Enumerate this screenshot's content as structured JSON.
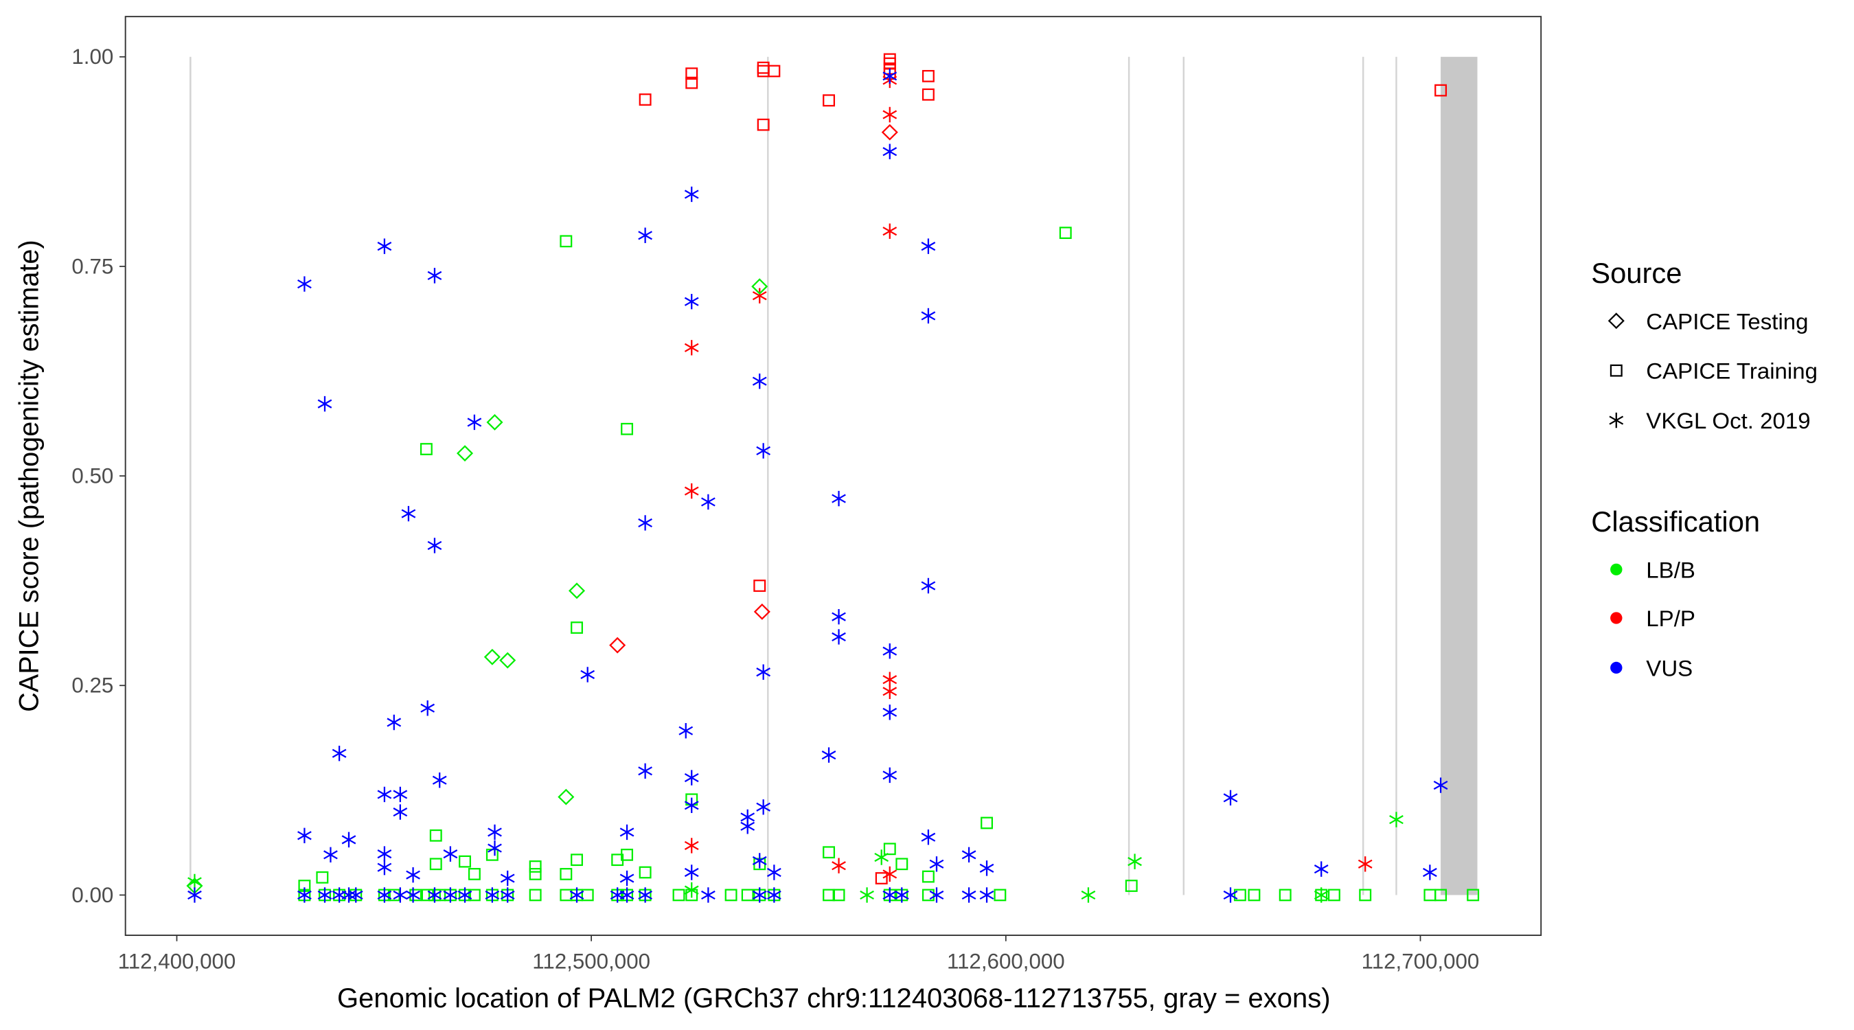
{
  "chart_data": {
    "type": "scatter",
    "xlabel": "Genomic location of PALM2 (GRCh37 chr9:112403068-112713755, gray = exons)",
    "ylabel": "CAPICE score (pathogenicity estimate)",
    "xlim": [
      112384000,
      112725000
    ],
    "ylim": [
      -0.047,
      1.047
    ],
    "x_ticks": [
      112400000,
      112500000,
      112600000,
      112700000
    ],
    "x_tick_labels": [
      "112,400,000",
      "112,500,000",
      "112,600,000",
      "112,700,000"
    ],
    "y_ticks": [
      0,
      0.25,
      0.5,
      0.75,
      1.0
    ],
    "y_tick_labels": [
      "0.00",
      "0.25",
      "0.50",
      "0.75",
      "1.00"
    ],
    "grid": false,
    "exons": [
      [
        112403068,
        112403500
      ],
      [
        112542400,
        112542800
      ],
      [
        112629500,
        112629900
      ],
      [
        112642700,
        112643100
      ],
      [
        112686000,
        112686400
      ],
      [
        112694000,
        112694400
      ],
      [
        112704900,
        112713755
      ]
    ],
    "legend": {
      "placement": "right",
      "source_title": "Source",
      "source_items": [
        {
          "code": "T",
          "label": "CAPICE Testing",
          "shape": "diamond"
        },
        {
          "code": "R",
          "label": "CAPICE Training",
          "shape": "square"
        },
        {
          "code": "V",
          "label": "VKGL Oct. 2019",
          "shape": "asterisk"
        }
      ],
      "class_title": "Classification",
      "class_items": [
        {
          "code": "B",
          "label": "LB/B",
          "color": "#00EE00"
        },
        {
          "code": "P",
          "label": "LP/P",
          "color": "#FF0000"
        },
        {
          "code": "U",
          "label": "VUS",
          "color": "#0000FF"
        }
      ]
    },
    "points": [
      [
        112513000,
        0.949,
        "R",
        "P"
      ],
      [
        112524200,
        0.98,
        "R",
        "P"
      ],
      [
        112524200,
        0.969,
        "R",
        "P"
      ],
      [
        112541500,
        0.987,
        "R",
        "P"
      ],
      [
        112541500,
        0.983,
        "R",
        "P"
      ],
      [
        112544100,
        0.983,
        "R",
        "P"
      ],
      [
        112541500,
        0.919,
        "R",
        "P"
      ],
      [
        112557300,
        0.948,
        "R",
        "P"
      ],
      [
        112572000,
        0.997,
        "R",
        "P"
      ],
      [
        112572000,
        0.992,
        "R",
        "P"
      ],
      [
        112572000,
        0.986,
        "R",
        "P"
      ],
      [
        112572000,
        0.98,
        "R",
        "P"
      ],
      [
        112581300,
        0.977,
        "R",
        "P"
      ],
      [
        112581300,
        0.955,
        "R",
        "P"
      ],
      [
        112704900,
        0.96,
        "R",
        "P"
      ],
      [
        112540600,
        0.369,
        "R",
        "P"
      ],
      [
        112570000,
        0.02,
        "R",
        "P"
      ],
      [
        112572000,
        0.972,
        "V",
        "P"
      ],
      [
        112572000,
        0.931,
        "V",
        "P"
      ],
      [
        112572000,
        0.792,
        "V",
        "P"
      ],
      [
        112540600,
        0.715,
        "V",
        "P"
      ],
      [
        112524200,
        0.653,
        "V",
        "P"
      ],
      [
        112524200,
        0.482,
        "V",
        "P"
      ],
      [
        112524200,
        0.059,
        "V",
        "P"
      ],
      [
        112559700,
        0.035,
        "V",
        "P"
      ],
      [
        112572000,
        0.257,
        "V",
        "P"
      ],
      [
        112572000,
        0.243,
        "V",
        "P"
      ],
      [
        112572000,
        0.025,
        "V",
        "P"
      ],
      [
        112686700,
        0.037,
        "V",
        "P"
      ],
      [
        112572000,
        0.91,
        "T",
        "P"
      ],
      [
        112541200,
        0.338,
        "T",
        "P"
      ],
      [
        112506300,
        0.298,
        "T",
        "P"
      ],
      [
        112540600,
        0.726,
        "T",
        "B"
      ],
      [
        112476700,
        0.564,
        "T",
        "B"
      ],
      [
        112469500,
        0.527,
        "T",
        "B"
      ],
      [
        112496500,
        0.363,
        "T",
        "B"
      ],
      [
        112476100,
        0.284,
        "T",
        "B"
      ],
      [
        112479800,
        0.28,
        "T",
        "B"
      ],
      [
        112493900,
        0.117,
        "T",
        "B"
      ],
      [
        112404300,
        0.011,
        "T",
        "B"
      ],
      [
        112493900,
        0.78,
        "R",
        "B"
      ],
      [
        112614400,
        0.79,
        "R",
        "B"
      ],
      [
        112508600,
        0.556,
        "R",
        "B"
      ],
      [
        112460200,
        0.532,
        "R",
        "B"
      ],
      [
        112496500,
        0.319,
        "R",
        "B"
      ],
      [
        112595400,
        0.086,
        "R",
        "B"
      ],
      [
        112462500,
        0.071,
        "R",
        "B"
      ],
      [
        112524200,
        0.114,
        "R",
        "B"
      ],
      [
        112557300,
        0.051,
        "R",
        "B"
      ],
      [
        112572000,
        0.055,
        "R",
        "B"
      ],
      [
        112630300,
        0.011,
        "R",
        "B"
      ],
      [
        112486500,
        0.034,
        "R",
        "B"
      ],
      [
        112486500,
        0.025,
        "R",
        "B"
      ],
      [
        112493900,
        0.025,
        "R",
        "B"
      ],
      [
        112496500,
        0.042,
        "R",
        "B"
      ],
      [
        112506300,
        0.042,
        "R",
        "B"
      ],
      [
        112508600,
        0.048,
        "R",
        "B"
      ],
      [
        112513000,
        0.027,
        "R",
        "B"
      ],
      [
        112462500,
        0.037,
        "R",
        "B"
      ],
      [
        112469500,
        0.04,
        "R",
        "B"
      ],
      [
        112471800,
        0.025,
        "R",
        "B"
      ],
      [
        112476100,
        0.048,
        "R",
        "B"
      ],
      [
        112435100,
        0.021,
        "R",
        "B"
      ],
      [
        112430800,
        0.011,
        "R",
        "B"
      ],
      [
        112574900,
        0.037,
        "R",
        "B"
      ],
      [
        112581300,
        0.022,
        "R",
        "B"
      ],
      [
        112540600,
        0.037,
        "R",
        "B"
      ],
      [
        112430800,
        0,
        "R",
        "B"
      ],
      [
        112435700,
        0,
        "R",
        "B"
      ],
      [
        112439200,
        0,
        "R",
        "B"
      ],
      [
        112443200,
        0,
        "R",
        "B"
      ],
      [
        112450100,
        0,
        "R",
        "B"
      ],
      [
        112452400,
        0,
        "R",
        "B"
      ],
      [
        112457600,
        0,
        "R",
        "B"
      ],
      [
        112460500,
        0,
        "R",
        "B"
      ],
      [
        112462200,
        0,
        "R",
        "B"
      ],
      [
        112463400,
        0,
        "R",
        "B"
      ],
      [
        112466000,
        0,
        "R",
        "B"
      ],
      [
        112469500,
        0,
        "R",
        "B"
      ],
      [
        112471800,
        0,
        "R",
        "B"
      ],
      [
        112476100,
        0,
        "R",
        "B"
      ],
      [
        112479800,
        0,
        "R",
        "B"
      ],
      [
        112486500,
        0,
        "R",
        "B"
      ],
      [
        112493900,
        0,
        "R",
        "B"
      ],
      [
        112496500,
        0,
        "R",
        "B"
      ],
      [
        112499100,
        0,
        "R",
        "B"
      ],
      [
        112506300,
        0,
        "R",
        "B"
      ],
      [
        112508600,
        0,
        "R",
        "B"
      ],
      [
        112513000,
        0,
        "R",
        "B"
      ],
      [
        112521100,
        0,
        "R",
        "B"
      ],
      [
        112524200,
        0,
        "R",
        "B"
      ],
      [
        112533700,
        0,
        "R",
        "B"
      ],
      [
        112537700,
        0,
        "R",
        "B"
      ],
      [
        112540600,
        0,
        "R",
        "B"
      ],
      [
        112544100,
        0,
        "R",
        "B"
      ],
      [
        112557300,
        0,
        "R",
        "B"
      ],
      [
        112559700,
        0,
        "R",
        "B"
      ],
      [
        112572000,
        0,
        "R",
        "B"
      ],
      [
        112574900,
        0,
        "R",
        "B"
      ],
      [
        112581300,
        0,
        "R",
        "B"
      ],
      [
        112598600,
        0,
        "R",
        "B"
      ],
      [
        112656500,
        0,
        "R",
        "B"
      ],
      [
        112659900,
        0,
        "R",
        "B"
      ],
      [
        112667400,
        0,
        "R",
        "B"
      ],
      [
        112676100,
        0,
        "R",
        "B"
      ],
      [
        112679200,
        0,
        "R",
        "B"
      ],
      [
        112686700,
        0,
        "R",
        "B"
      ],
      [
        112702300,
        0,
        "R",
        "B"
      ],
      [
        112704900,
        0,
        "R",
        "B"
      ],
      [
        112712700,
        0,
        "R",
        "B"
      ],
      [
        112694200,
        0.09,
        "V",
        "B"
      ],
      [
        112631100,
        0.04,
        "V",
        "B"
      ],
      [
        112619900,
        0,
        "V",
        "B"
      ],
      [
        112570000,
        0.045,
        "V",
        "B"
      ],
      [
        112566500,
        0,
        "V",
        "B"
      ],
      [
        112404300,
        0.016,
        "V",
        "B"
      ],
      [
        112676100,
        0,
        "V",
        "B"
      ],
      [
        112524200,
        0.006,
        "V",
        "B"
      ],
      [
        112430800,
        0.729,
        "V",
        "U"
      ],
      [
        112450100,
        0.774,
        "V",
        "U"
      ],
      [
        112462200,
        0.739,
        "V",
        "U"
      ],
      [
        112435700,
        0.586,
        "V",
        "U"
      ],
      [
        112471800,
        0.564,
        "V",
        "U"
      ],
      [
        112455900,
        0.455,
        "V",
        "U"
      ],
      [
        112462200,
        0.417,
        "V",
        "U"
      ],
      [
        112513000,
        0.787,
        "V",
        "U"
      ],
      [
        112524200,
        0.836,
        "V",
        "U"
      ],
      [
        112524200,
        0.708,
        "V",
        "U"
      ],
      [
        112572000,
        0.887,
        "V",
        "U"
      ],
      [
        112572000,
        0.977,
        "V",
        "U"
      ],
      [
        112581300,
        0.774,
        "V",
        "U"
      ],
      [
        112581300,
        0.691,
        "V",
        "U"
      ],
      [
        112540600,
        0.613,
        "V",
        "U"
      ],
      [
        112541500,
        0.53,
        "V",
        "U"
      ],
      [
        112528200,
        0.469,
        "V",
        "U"
      ],
      [
        112513000,
        0.444,
        "V",
        "U"
      ],
      [
        112559700,
        0.473,
        "V",
        "U"
      ],
      [
        112581300,
        0.369,
        "V",
        "U"
      ],
      [
        112559700,
        0.332,
        "V",
        "U"
      ],
      [
        112559700,
        0.308,
        "V",
        "U"
      ],
      [
        112572000,
        0.291,
        "V",
        "U"
      ],
      [
        112499100,
        0.263,
        "V",
        "U"
      ],
      [
        112541500,
        0.266,
        "V",
        "U"
      ],
      [
        112572000,
        0.218,
        "V",
        "U"
      ],
      [
        112452400,
        0.206,
        "V",
        "U"
      ],
      [
        112460500,
        0.223,
        "V",
        "U"
      ],
      [
        112439200,
        0.169,
        "V",
        "U"
      ],
      [
        112522800,
        0.196,
        "V",
        "U"
      ],
      [
        112557300,
        0.167,
        "V",
        "U"
      ],
      [
        112513000,
        0.148,
        "V",
        "U"
      ],
      [
        112524200,
        0.14,
        "V",
        "U"
      ],
      [
        112572000,
        0.143,
        "V",
        "U"
      ],
      [
        112463400,
        0.137,
        "V",
        "U"
      ],
      [
        112450100,
        0.12,
        "V",
        "U"
      ],
      [
        112453900,
        0.12,
        "V",
        "U"
      ],
      [
        112453900,
        0.099,
        "V",
        "U"
      ],
      [
        112524200,
        0.107,
        "V",
        "U"
      ],
      [
        112541500,
        0.105,
        "V",
        "U"
      ],
      [
        112537700,
        0.093,
        "V",
        "U"
      ],
      [
        112537700,
        0.082,
        "V",
        "U"
      ],
      [
        112654200,
        0.116,
        "V",
        "U"
      ],
      [
        112704900,
        0.131,
        "V",
        "U"
      ],
      [
        112430800,
        0.071,
        "V",
        "U"
      ],
      [
        112441500,
        0.066,
        "V",
        "U"
      ],
      [
        112581300,
        0.069,
        "V",
        "U"
      ],
      [
        112476700,
        0.075,
        "V",
        "U"
      ],
      [
        112508600,
        0.075,
        "V",
        "U"
      ],
      [
        112476700,
        0.056,
        "V",
        "U"
      ],
      [
        112437100,
        0.048,
        "V",
        "U"
      ],
      [
        112450100,
        0.049,
        "V",
        "U"
      ],
      [
        112466000,
        0.049,
        "V",
        "U"
      ],
      [
        112591100,
        0.048,
        "V",
        "U"
      ],
      [
        112595400,
        0.032,
        "V",
        "U"
      ],
      [
        112676100,
        0.031,
        "V",
        "U"
      ],
      [
        112702300,
        0.027,
        "V",
        "U"
      ],
      [
        112583300,
        0.037,
        "V",
        "U"
      ],
      [
        112540600,
        0.041,
        "V",
        "U"
      ],
      [
        112450100,
        0.033,
        "V",
        "U"
      ],
      [
        112457000,
        0.024,
        "V",
        "U"
      ],
      [
        112479800,
        0.02,
        "V",
        "U"
      ],
      [
        112524200,
        0.027,
        "V",
        "U"
      ],
      [
        112544100,
        0.027,
        "V",
        "U"
      ],
      [
        112508600,
        0.02,
        "V",
        "U"
      ],
      [
        112430800,
        0,
        "V",
        "U"
      ],
      [
        112435700,
        0,
        "V",
        "U"
      ],
      [
        112439200,
        0,
        "V",
        "U"
      ],
      [
        112441500,
        0,
        "V",
        "U"
      ],
      [
        112443200,
        0,
        "V",
        "U"
      ],
      [
        112450100,
        0,
        "V",
        "U"
      ],
      [
        112453900,
        0,
        "V",
        "U"
      ],
      [
        112457000,
        0,
        "V",
        "U"
      ],
      [
        112462200,
        0,
        "V",
        "U"
      ],
      [
        112466000,
        0,
        "V",
        "U"
      ],
      [
        112469500,
        0,
        "V",
        "U"
      ],
      [
        112476100,
        0,
        "V",
        "U"
      ],
      [
        112479800,
        0,
        "V",
        "U"
      ],
      [
        112496500,
        0,
        "V",
        "U"
      ],
      [
        112506300,
        0,
        "V",
        "U"
      ],
      [
        112508600,
        0,
        "V",
        "U"
      ],
      [
        112513000,
        0,
        "V",
        "U"
      ],
      [
        112528200,
        0,
        "V",
        "U"
      ],
      [
        112540600,
        0,
        "V",
        "U"
      ],
      [
        112544100,
        0,
        "V",
        "U"
      ],
      [
        112572000,
        0,
        "V",
        "U"
      ],
      [
        112574900,
        0,
        "V",
        "U"
      ],
      [
        112583300,
        0,
        "V",
        "U"
      ],
      [
        112591100,
        0,
        "V",
        "U"
      ],
      [
        112595400,
        0,
        "V",
        "U"
      ],
      [
        112654200,
        0,
        "V",
        "U"
      ],
      [
        112404300,
        0,
        "V",
        "U"
      ]
    ]
  }
}
